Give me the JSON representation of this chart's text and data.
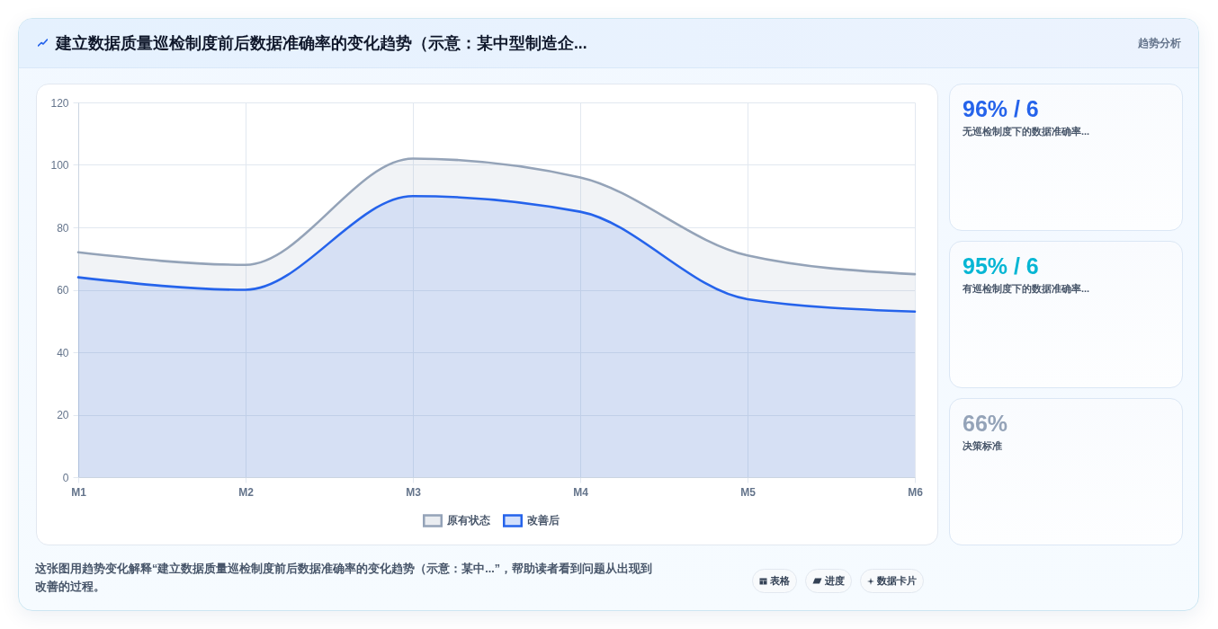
{
  "chart_data": [
    {
      "type": "area",
      "title": "建立数据质量巡检制度前后数据准确率的变化趋势（示意：某中型制造企...",
      "categories": [
        "M1",
        "M2",
        "M3",
        "M4",
        "M5",
        "M6"
      ],
      "series": [
        {
          "name": "原有状态",
          "color": "#94a3b8",
          "values": [
            72,
            68,
            102,
            96,
            71,
            65
          ]
        },
        {
          "name": "改善后",
          "color": "#2563eb",
          "values": [
            64,
            60,
            90,
            85,
            57,
            53
          ]
        }
      ],
      "ylim": [
        0,
        120
      ],
      "yticks": [
        0,
        20,
        40,
        60,
        80,
        100,
        120
      ],
      "grid": true,
      "legend": "bottom",
      "annotations": [
        "趋势分析",
        "这张图用趋势变化解释“建立数据质量巡检制度前后数据准确率的变化趋势（示意：某中...”，帮助读者看到问题从出现到改善的过程。",
        "表格",
        "进度",
        "数据卡片"
      ]
    },
    {
      "type": "other",
      "title": "96% / 6",
      "subtitle": "无巡检制度下的数据准确率..."
    },
    {
      "type": "other",
      "title": "95% / 6",
      "subtitle": "有巡检制度下的数据准确率..."
    },
    {
      "type": "other",
      "title": "66%",
      "subtitle": "决策标准"
    }
  ]
}
